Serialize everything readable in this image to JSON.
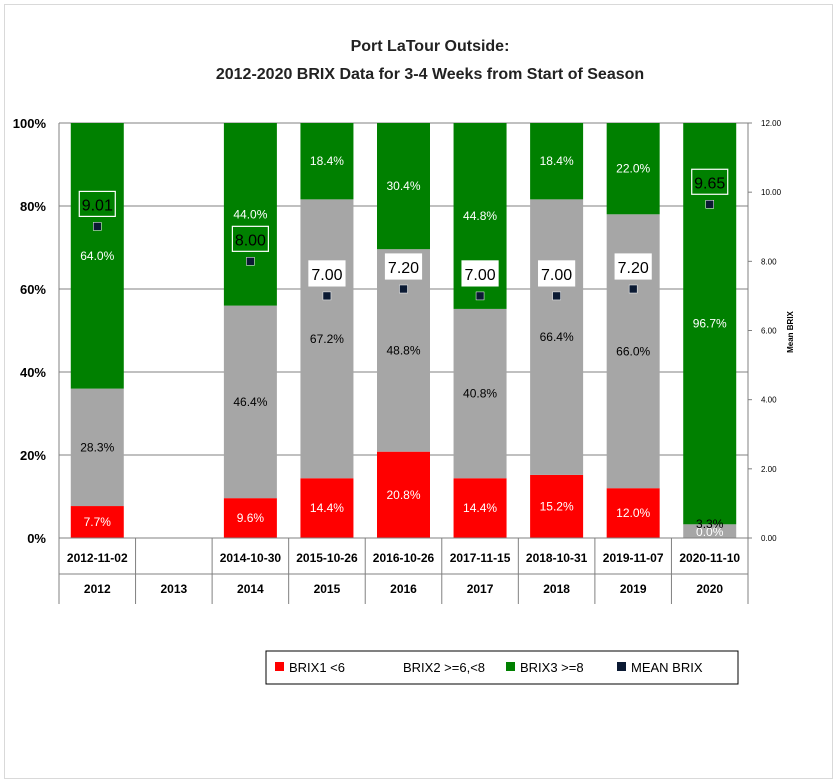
{
  "chart_data": {
    "type": "bar",
    "title_line1": "Port LaTour Outside:",
    "title_line2": "2012-2020 BRIX Data for 3-4 Weeks from Start of Season",
    "y_ticks": [
      "0%",
      "20%",
      "40%",
      "60%",
      "80%",
      "100%"
    ],
    "y2_ticks": [
      "0.00",
      "2.00",
      "4.00",
      "6.00",
      "8.00",
      "10.00",
      "12.00"
    ],
    "y2label": "Mean BRIX",
    "y2lim": [
      0,
      12
    ],
    "categories": [
      {
        "date": "2012-11-02",
        "year": "2012"
      },
      {
        "date": "",
        "year": "2013"
      },
      {
        "date": "2014-10-30",
        "year": "2014"
      },
      {
        "date": "2015-10-26",
        "year": "2015"
      },
      {
        "date": "2016-10-26",
        "year": "2016"
      },
      {
        "date": "2017-11-15",
        "year": "2017"
      },
      {
        "date": "2018-10-31",
        "year": "2018"
      },
      {
        "date": "2019-11-07",
        "year": "2019"
      },
      {
        "date": "2020-11-10",
        "year": "2020"
      }
    ],
    "series": [
      {
        "name": "BRIX1 <6",
        "color": "#ff0000",
        "values": [
          7.7,
          null,
          9.6,
          14.4,
          20.8,
          14.4,
          15.2,
          12.0,
          0.0
        ],
        "labels": [
          "7.7%",
          "",
          "9.6%",
          "14.4%",
          "20.8%",
          "14.4%",
          "15.2%",
          "12.0%",
          "0.0%"
        ]
      },
      {
        "name": "BRIX2 >=6,<8",
        "color": "#a6a6a6",
        "values": [
          28.3,
          null,
          46.4,
          67.2,
          48.8,
          40.8,
          66.4,
          66.0,
          3.3
        ],
        "labels": [
          "28.3%",
          "",
          "46.4%",
          "67.2%",
          "48.8%",
          "40.8%",
          "66.4%",
          "66.0%",
          "3.3%"
        ]
      },
      {
        "name": "BRIX3 >=8",
        "color": "#008000",
        "values": [
          64.0,
          null,
          44.0,
          18.4,
          30.4,
          44.8,
          18.4,
          22.0,
          96.7
        ],
        "labels": [
          "64.0%",
          "",
          "44.0%",
          "18.4%",
          "30.4%",
          "44.8%",
          "18.4%",
          "22.0%",
          "96.7%"
        ]
      },
      {
        "name": "MEAN BRIX",
        "color": "#0b1a33",
        "axis": "secondary",
        "values": [
          9.01,
          null,
          8.0,
          7.0,
          7.2,
          7.0,
          7.0,
          7.2,
          9.65
        ],
        "labels": [
          "9.01",
          "",
          "8.00",
          "7.00",
          "7.20",
          "7.00",
          "7.00",
          "7.20",
          "9.65"
        ]
      }
    ],
    "ylim": [
      0,
      100
    ],
    "legend_position": "bottom"
  }
}
